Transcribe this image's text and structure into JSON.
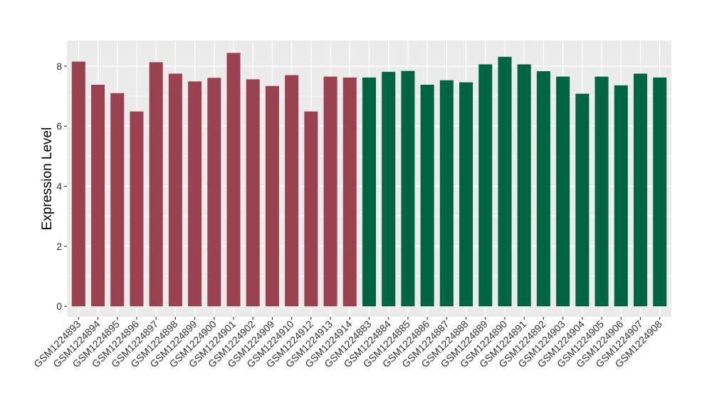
{
  "chart_data": {
    "type": "bar",
    "title": "",
    "xlabel": "",
    "ylabel": "Expression Level",
    "ylim": [
      -0.35,
      8.85
    ],
    "yticks": [
      0,
      2,
      4,
      6,
      8
    ],
    "grid": true,
    "categories": [
      "GSM1224893",
      "GSM1224894",
      "GSM1224895",
      "GSM1224896",
      "GSM1224897",
      "GSM1224898",
      "GSM1224899",
      "GSM1224900",
      "GSM1224901",
      "GSM1224902",
      "GSM1224909",
      "GSM1224910",
      "GSM1224912",
      "GSM1224913",
      "GSM1224914",
      "GSM1224883",
      "GSM1224884",
      "GSM1224885",
      "GSM1224886",
      "GSM1224887",
      "GSM1224888",
      "GSM1224889",
      "GSM1224890",
      "GSM1224891",
      "GSM1224892",
      "GSM1224903",
      "GSM1224904",
      "GSM1224905",
      "GSM1224906",
      "GSM1224907",
      "GSM1224908"
    ],
    "values": [
      8.15,
      7.38,
      7.1,
      6.49,
      8.13,
      7.75,
      7.49,
      7.61,
      8.44,
      7.56,
      7.34,
      7.7,
      6.49,
      7.65,
      7.62,
      7.62,
      7.81,
      7.84,
      7.38,
      7.53,
      7.46,
      8.06,
      8.31,
      8.06,
      7.83,
      7.65,
      7.08,
      7.65,
      7.36,
      7.75,
      7.62
    ],
    "group_colors": [
      "#9b4250",
      "#9b4250",
      "#9b4250",
      "#9b4250",
      "#9b4250",
      "#9b4250",
      "#9b4250",
      "#9b4250",
      "#9b4250",
      "#9b4250",
      "#9b4250",
      "#9b4250",
      "#9b4250",
      "#9b4250",
      "#9b4250",
      "#006543",
      "#006543",
      "#006543",
      "#006543",
      "#006543",
      "#006543",
      "#006543",
      "#006543",
      "#006543",
      "#006543",
      "#006543",
      "#006543",
      "#006543",
      "#006543",
      "#006543",
      "#006543"
    ],
    "panel_background": "#ebebeb",
    "grid_color": "#ffffff"
  }
}
